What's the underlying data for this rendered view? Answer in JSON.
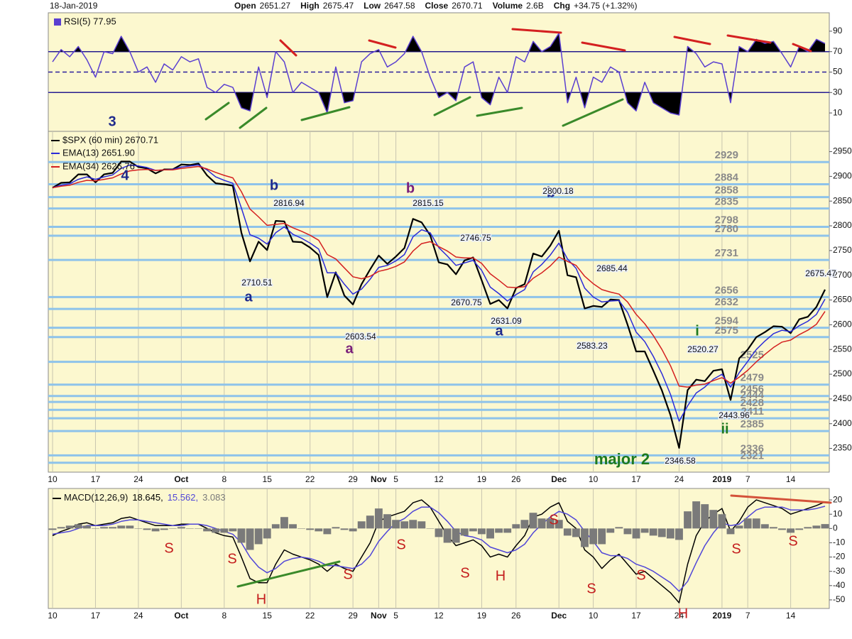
{
  "header": {
    "date": "18-Jan-2019",
    "quote": [
      {
        "label": "Open",
        "value": "2651.27"
      },
      {
        "label": "High",
        "value": "2675.47"
      },
      {
        "label": "Low",
        "value": "2647.58"
      },
      {
        "label": "Close",
        "value": "2670.71"
      },
      {
        "label": "Volume",
        "value": "2.6B"
      },
      {
        "label": "Chg",
        "value": "+34.75 (+1.32%)"
      }
    ]
  },
  "chart_data": [
    {
      "type": "line",
      "series": [
        {
          "name": "RSI(5) 77.95",
          "color": "#5a3fd0",
          "values": [
            60,
            72,
            65,
            75,
            62,
            45,
            70,
            68,
            85,
            70,
            50,
            55,
            40,
            58,
            52,
            65,
            60,
            63,
            35,
            30,
            38,
            35,
            15,
            12,
            55,
            25,
            70,
            60,
            30,
            40,
            35,
            30,
            10,
            55,
            20,
            22,
            60,
            68,
            72,
            55,
            60,
            68,
            85,
            70,
            45,
            25,
            30,
            22,
            55,
            60,
            25,
            18,
            45,
            30,
            65,
            60,
            80,
            70,
            75,
            88,
            20,
            45,
            15,
            45,
            40,
            55,
            50,
            20,
            12,
            40,
            20,
            15,
            10,
            8,
            75,
            68,
            55,
            60,
            58,
            20,
            75,
            70,
            82,
            78,
            80,
            68,
            55,
            75,
            70,
            82,
            77.95
          ]
        }
      ],
      "ylim": [
        -8,
        108
      ],
      "yticks": [
        10,
        30,
        50,
        70,
        90
      ],
      "levels": [
        70,
        50,
        30
      ],
      "level_color": "#2a1f9e"
    },
    {
      "type": "line",
      "categories": [
        "10",
        null,
        null,
        null,
        null,
        "17",
        null,
        null,
        null,
        null,
        "24",
        null,
        null,
        null,
        null,
        "Oct",
        null,
        null,
        null,
        null,
        "8",
        null,
        null,
        null,
        null,
        "15",
        null,
        null,
        null,
        null,
        "22",
        null,
        null,
        null,
        null,
        "29",
        null,
        null,
        "Nov",
        null,
        "5",
        null,
        null,
        null,
        null,
        "12",
        null,
        null,
        null,
        null,
        "19",
        null,
        null,
        null,
        "26",
        null,
        null,
        null,
        null,
        "Dec",
        null,
        null,
        null,
        "10",
        null,
        null,
        null,
        null,
        "17",
        null,
        null,
        null,
        null,
        "24",
        null,
        null,
        null,
        null,
        "2019",
        null,
        null,
        "7",
        null,
        null,
        null,
        null,
        "14",
        null,
        null,
        null,
        null
      ],
      "series": [
        {
          "name": "$SPX (60 min) 2670.71",
          "color": "#000000",
          "values": [
            2877,
            2887,
            2888,
            2904,
            2904,
            2888,
            2904,
            2907,
            2930,
            2930,
            2919,
            2916,
            2906,
            2914,
            2914,
            2924,
            2923,
            2926,
            2902,
            2886,
            2884,
            2881,
            2786,
            2728,
            2768,
            2751,
            2810,
            2809,
            2768,
            2767,
            2756,
            2741,
            2656,
            2706,
            2659,
            2641,
            2682,
            2712,
            2740,
            2723,
            2738,
            2755,
            2814,
            2807,
            2781,
            2726,
            2722,
            2702,
            2730,
            2736,
            2690,
            2642,
            2650,
            2633,
            2674,
            2682,
            2744,
            2738,
            2760,
            2790,
            2700,
            2696,
            2633,
            2638,
            2636,
            2651,
            2650,
            2600,
            2546,
            2546,
            2507,
            2467,
            2417,
            2351,
            2468,
            2489,
            2486,
            2507,
            2510,
            2448,
            2532,
            2550,
            2575,
            2585,
            2597,
            2596,
            2583,
            2611,
            2616,
            2636,
            2671
          ]
        },
        {
          "name": "EMA(13) 2651.90",
          "color": "#2b2bd9",
          "values": [
            2877,
            2882,
            2885,
            2894,
            2899,
            2894,
            2899,
            2903,
            2916,
            2923,
            2921,
            2918,
            2912,
            2913,
            2914,
            2919,
            2921,
            2923,
            2913,
            2899,
            2892,
            2886,
            2836,
            2782,
            2775,
            2763,
            2786,
            2798,
            2783,
            2775,
            2765,
            2753,
            2705,
            2705,
            2682,
            2662,
            2672,
            2692,
            2716,
            2720,
            2729,
            2742,
            2778,
            2792,
            2786,
            2756,
            2739,
            2720,
            2725,
            2730,
            2710,
            2676,
            2663,
            2648,
            2661,
            2671,
            2707,
            2722,
            2741,
            2765,
            2733,
            2714,
            2674,
            2656,
            2646,
            2648,
            2649,
            2625,
            2585,
            2566,
            2536,
            2501,
            2459,
            2405,
            2436,
            2462,
            2474,
            2490,
            2500,
            2474,
            2503,
            2526,
            2550,
            2567,
            2582,
            2589,
            2586,
            2598,
            2607,
            2621,
            2652
          ]
        },
        {
          "name": "EMA(34) 2626.76",
          "color": "#d42020",
          "values": [
            2877,
            2880,
            2882,
            2888,
            2892,
            2891,
            2894,
            2897,
            2905,
            2911,
            2913,
            2914,
            2912,
            2913,
            2913,
            2916,
            2918,
            2920,
            2915,
            2908,
            2902,
            2897,
            2869,
            2834,
            2818,
            2801,
            2803,
            2805,
            2796,
            2789,
            2781,
            2771,
            2742,
            2733,
            2715,
            2697,
            2693,
            2698,
            2708,
            2712,
            2718,
            2727,
            2749,
            2764,
            2768,
            2758,
            2749,
            2737,
            2735,
            2735,
            2724,
            2703,
            2690,
            2676,
            2675,
            2677,
            2694,
            2705,
            2719,
            2737,
            2728,
            2720,
            2698,
            2683,
            2671,
            2666,
            2662,
            2646,
            2621,
            2602,
            2578,
            2550,
            2517,
            2476,
            2474,
            2478,
            2480,
            2487,
            2493,
            2482,
            2494,
            2508,
            2525,
            2540,
            2554,
            2565,
            2569,
            2580,
            2589,
            2601,
            2627
          ]
        }
      ],
      "ylim": [
        2302,
        2991
      ],
      "yticks": [
        2350,
        2400,
        2450,
        2500,
        2550,
        2600,
        2650,
        2700,
        2750,
        2800,
        2850,
        2900,
        2950
      ],
      "levels": [
        2929,
        2884,
        2858,
        2835,
        2798,
        2780,
        2731,
        2656,
        2632,
        2594,
        2575,
        2525,
        2479,
        2456,
        2444,
        2428,
        2411,
        2385,
        2336,
        2321
      ],
      "annotations": [
        "3",
        "4",
        "b",
        "b",
        "b",
        "a",
        "a",
        "a",
        "i",
        "ii",
        "major 2",
        "2816.94",
        "2815.15",
        "2800.18",
        "2746.75",
        "2710.51",
        "2670.75",
        "2631.09",
        "2603.54",
        "2685.44",
        "2583.23",
        "2520.27",
        "2443.96",
        "2346.58",
        "2675.47"
      ]
    },
    {
      "type": "line",
      "title": "MACD(12,26,9)",
      "categories": [
        "10",
        null,
        null,
        null,
        null,
        "17",
        null,
        null,
        null,
        null,
        "24",
        null,
        null,
        null,
        null,
        "Oct",
        null,
        null,
        null,
        null,
        "8",
        null,
        null,
        null,
        null,
        "15",
        null,
        null,
        null,
        null,
        "22",
        null,
        null,
        null,
        null,
        "29",
        null,
        null,
        "Nov",
        null,
        "5",
        null,
        null,
        null,
        null,
        "12",
        null,
        null,
        null,
        null,
        "19",
        null,
        null,
        null,
        "26",
        null,
        null,
        null,
        null,
        "Dec",
        null,
        null,
        null,
        "10",
        null,
        null,
        null,
        null,
        "17",
        null,
        null,
        null,
        null,
        "24",
        null,
        null,
        null,
        null,
        "2019",
        null,
        null,
        "7",
        null,
        null,
        null,
        null,
        "14",
        null,
        null,
        null,
        null
      ],
      "series": [
        {
          "name": "18.645,",
          "color": "#000000",
          "values": [
            -5,
            -2,
            0,
            3,
            4,
            2,
            3,
            4,
            7,
            8,
            6,
            4,
            2,
            2,
            2,
            3,
            3,
            3,
            0,
            -3,
            -5,
            -6,
            -20,
            -35,
            -38,
            -38,
            -25,
            -15,
            -18,
            -20,
            -22,
            -25,
            -30,
            -25,
            -28,
            -30,
            -20,
            -10,
            5,
            8,
            10,
            12,
            18,
            20,
            15,
            5,
            -5,
            -12,
            -10,
            -8,
            -12,
            -20,
            -18,
            -20,
            -12,
            -5,
            8,
            10,
            15,
            18,
            5,
            0,
            -15,
            -20,
            -28,
            -22,
            -18,
            -25,
            -32,
            -30,
            -35,
            -40,
            -45,
            -52,
            -25,
            -5,
            5,
            10,
            14,
            -2,
            5,
            15,
            20,
            18,
            16,
            14,
            10,
            12,
            14,
            16,
            18.645
          ]
        },
        {
          "name": "15.562,",
          "color": "#5046d8",
          "values": [
            -4,
            -3,
            -2,
            0,
            2,
            2,
            2,
            3,
            5,
            6,
            6,
            5,
            4,
            3,
            2,
            2,
            3,
            3,
            2,
            0,
            -2,
            -4,
            -10,
            -20,
            -27,
            -31,
            -28,
            -23,
            -21,
            -20,
            -21,
            -23,
            -26,
            -26,
            -27,
            -28,
            -25,
            -19,
            -9,
            -2,
            4,
            7,
            12,
            15,
            15,
            11,
            5,
            -2,
            -5,
            -6,
            -8,
            -13,
            -15,
            -17,
            -15,
            -11,
            -3,
            3,
            8,
            12,
            10,
            6,
            -2,
            -9,
            -17,
            -19,
            -19,
            -21,
            -25,
            -27,
            -30,
            -34,
            -38,
            -44,
            -37,
            -24,
            -12,
            -3,
            4,
            2,
            3,
            8,
            13,
            15,
            15,
            15,
            13,
            13,
            13,
            14,
            15.562
          ]
        },
        {
          "name": "3.083",
          "color": "#7a7a7a",
          "type": "bar",
          "values": [
            -1,
            1,
            2,
            3,
            2,
            0,
            1,
            1,
            2,
            2,
            0,
            -1,
            -2,
            -1,
            0,
            1,
            0,
            0,
            -2,
            -3,
            -3,
            -2,
            -10,
            -15,
            -11,
            -7,
            3,
            8,
            3,
            0,
            -1,
            -2,
            -4,
            1,
            -1,
            -2,
            5,
            9,
            14,
            10,
            6,
            5,
            6,
            5,
            0,
            -6,
            -10,
            -10,
            -5,
            -2,
            -4,
            -7,
            -3,
            -3,
            3,
            6,
            11,
            7,
            7,
            6,
            -5,
            -6,
            -13,
            -11,
            -11,
            -3,
            1,
            -4,
            -7,
            -3,
            -5,
            -6,
            -7,
            -8,
            12,
            19,
            17,
            13,
            10,
            -4,
            2,
            7,
            7,
            3,
            1,
            -1,
            -3,
            -1,
            1,
            2,
            3.083
          ]
        }
      ],
      "ylim": [
        -56,
        28
      ],
      "yticks": [
        -50,
        -40,
        -30,
        -20,
        -10,
        0,
        10,
        20
      ],
      "annotations": [
        "S",
        "S",
        "H",
        "S",
        "S",
        "S",
        "H",
        "S",
        "S",
        "S",
        "H",
        "S",
        "S"
      ]
    }
  ]
}
